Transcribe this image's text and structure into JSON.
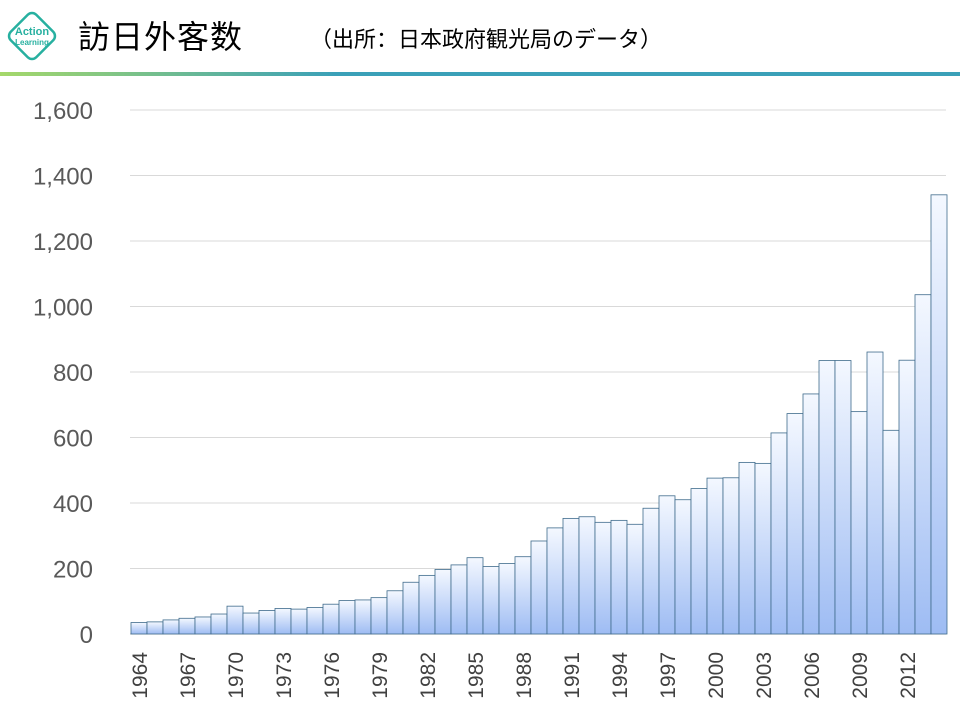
{
  "header": {
    "logo_line1": "Action",
    "logo_line2": "Learning",
    "title": "訪日外客数",
    "subtitle": "（出所：日本政府観光局のデータ）"
  },
  "colors": {
    "logo_green": "#27b0a0",
    "rule_green": "#a5d86a",
    "rule_teal": "#3aa0b8",
    "bar_top": "#f4f8ff",
    "bar_bottom": "#9ebcf3",
    "bar_border": "#3f6b8c",
    "grid": "#d9d9d9",
    "tick_text": "#595959"
  },
  "chart_data": {
    "type": "bar",
    "title": "訪日外客数",
    "xlabel": "",
    "ylabel": "",
    "ylim": [
      0,
      1600
    ],
    "yticks": [
      "0",
      "200",
      "400",
      "600",
      "800",
      "1,000",
      "1,200",
      "1,400",
      "1,600"
    ],
    "grid": true,
    "legend": "none",
    "categories": [
      "1964",
      "1965",
      "1966",
      "1967",
      "1968",
      "1969",
      "1970",
      "1971",
      "1972",
      "1973",
      "1974",
      "1975",
      "1976",
      "1977",
      "1978",
      "1979",
      "1980",
      "1981",
      "1982",
      "1983",
      "1984",
      "1985",
      "1986",
      "1987",
      "1988",
      "1989",
      "1990",
      "1991",
      "1992",
      "1993",
      "1994",
      "1995",
      "1996",
      "1997",
      "1998",
      "1999",
      "2000",
      "2001",
      "2002",
      "2003",
      "2004",
      "2005",
      "2006",
      "2007",
      "2008",
      "2009",
      "2010",
      "2011",
      "2012",
      "2013",
      "2014"
    ],
    "xtick_labels": [
      "1964",
      "1967",
      "1970",
      "1973",
      "1976",
      "1979",
      "1982",
      "1985",
      "1988",
      "1991",
      "1994",
      "1997",
      "2000",
      "2003",
      "2006",
      "2009",
      "2012"
    ],
    "values": [
      35,
      37,
      43,
      48,
      52,
      61,
      85,
      64,
      72,
      78,
      76,
      81,
      91,
      102,
      104,
      111,
      132,
      158,
      179,
      197,
      211,
      233,
      206,
      215,
      236,
      284,
      324,
      353,
      358,
      341,
      347,
      335,
      384,
      422,
      410,
      444,
      476,
      477,
      524,
      521,
      614,
      673,
      733,
      835,
      835,
      679,
      861,
      622,
      836,
      1036,
      1341
    ]
  }
}
